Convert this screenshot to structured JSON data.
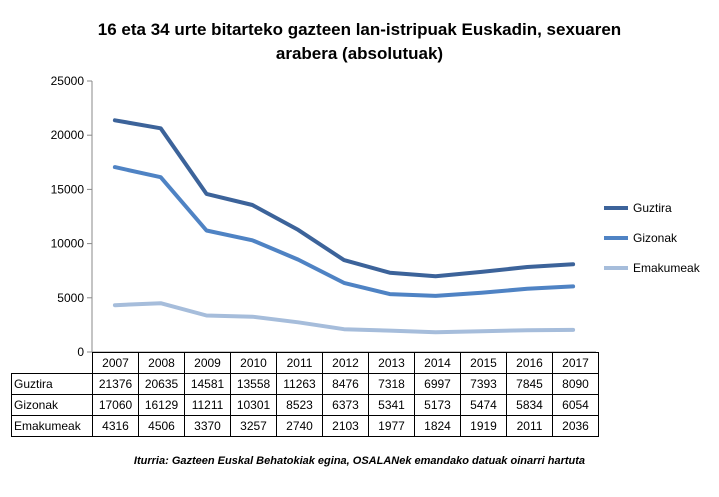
{
  "chart_data": {
    "type": "line",
    "title_line1": "16 eta 34 urte bitarteko gazteen lan-istripuak Euskadin, sexuaren",
    "title_line2": "arabera (absolutuak)",
    "categories": [
      "2007",
      "2008",
      "2009",
      "2010",
      "2011",
      "2012",
      "2013",
      "2014",
      "2015",
      "2016",
      "2017"
    ],
    "series": [
      {
        "name": "Guztira",
        "color": "#3c639a",
        "values": [
          21376,
          20635,
          14581,
          13558,
          11263,
          8476,
          7318,
          6997,
          7393,
          7845,
          8090
        ]
      },
      {
        "name": "Gizonak",
        "color": "#4f83c4",
        "values": [
          17060,
          16129,
          11211,
          10301,
          8523,
          6373,
          5341,
          5173,
          5474,
          5834,
          6054
        ]
      },
      {
        "name": "Emakumeak",
        "color": "#a6bddb",
        "values": [
          4316,
          4506,
          3370,
          3257,
          2740,
          2103,
          1977,
          1824,
          1919,
          2011,
          2036
        ]
      }
    ],
    "y_ticks": [
      "25000",
      "20000",
      "15000",
      "10000",
      "5000",
      "0"
    ],
    "ylim": [
      0,
      25000
    ],
    "grid": false,
    "legend": "right"
  },
  "source": "Iturria: Gazteen Euskal Behatokiak egina, OSALANek emandako datuak oinarri hartuta"
}
